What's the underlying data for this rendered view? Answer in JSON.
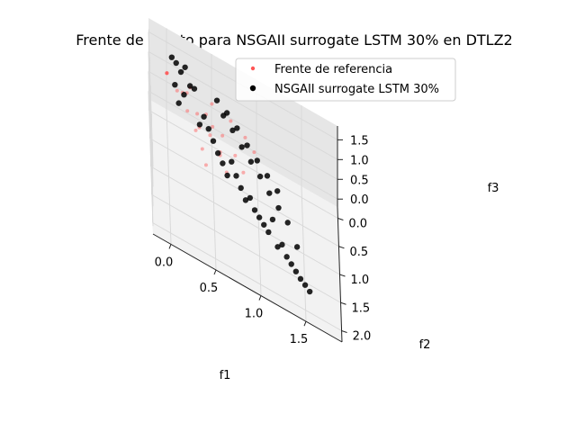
{
  "chart_data": {
    "type": "scatter",
    "projection": "3d",
    "title": "Frente de Pareto para NSGAII surrogate LSTM 30% en DTLZ2",
    "xlabel": "f1",
    "ylabel": "f2",
    "zlabel": "f3",
    "xlim": [
      -0.2,
      1.9
    ],
    "ylim": [
      -0.2,
      2.2
    ],
    "zlim": [
      -0.2,
      1.85
    ],
    "xticks": [
      "0.0",
      "0.5",
      "1.0",
      "1.5"
    ],
    "yticks": [
      "0.0",
      "0.5",
      "1.0",
      "1.5",
      "2.0"
    ],
    "zticks": [
      "0.0",
      "0.5",
      "1.0",
      "1.5"
    ],
    "grid": true,
    "legend_position": "upper-right",
    "colors": {
      "reference": "#ff5555",
      "surrogate": "#000000",
      "pane": "#f2f2f2",
      "grid": "#d9d9d9"
    },
    "series": [
      {
        "name": "Frente de referencia",
        "color": "#ff5555",
        "description": "DTLZ2 unit-sphere octant, f1^2+f2^2+f3^2=1",
        "x": [
          0.0,
          0.26,
          0.5,
          0.71,
          0.87,
          0.97,
          0.0,
          0.22,
          0.43,
          0.61,
          0.75,
          0.84,
          0.0,
          0.17,
          0.33,
          0.47,
          0.58,
          0.65,
          0.0,
          0.11,
          0.22,
          0.31,
          0.38,
          0.42,
          0.58,
          0.5,
          0.35
        ],
        "y": [
          0.0,
          0.0,
          0.0,
          0.0,
          0.0,
          0.0,
          0.0,
          0.13,
          0.25,
          0.35,
          0.43,
          0.48,
          0.0,
          0.17,
          0.33,
          0.47,
          0.58,
          0.65,
          0.0,
          0.19,
          0.38,
          0.53,
          0.65,
          0.73,
          0.58,
          0.35,
          0.5
        ],
        "z": [
          1.0,
          0.97,
          0.87,
          0.71,
          0.5,
          0.26,
          1.0,
          0.97,
          0.87,
          0.71,
          0.5,
          0.26,
          1.0,
          0.97,
          0.87,
          0.71,
          0.5,
          0.26,
          1.0,
          0.97,
          0.87,
          0.71,
          0.5,
          0.26,
          0.58,
          0.79,
          0.79
        ]
      },
      {
        "name": "NSGAII surrogate LSTM 30%",
        "color": "#000000",
        "x": [
          0.05,
          0.1,
          0.15,
          0.2,
          0.08,
          0.25,
          0.3,
          0.12,
          0.18,
          0.4,
          0.45,
          0.5,
          0.55,
          0.35,
          0.6,
          0.65,
          0.7,
          0.75,
          0.8,
          0.85,
          0.9,
          0.95,
          1.0,
          1.05,
          1.1,
          1.15,
          1.2,
          1.25,
          1.3,
          1.35,
          1.4,
          1.45,
          1.5,
          1.55,
          0.62,
          0.72,
          0.82,
          0.92,
          1.02,
          1.12,
          1.22,
          1.32,
          0.55,
          0.66,
          0.77,
          0.88,
          0.99,
          1.1,
          1.21,
          1.42
        ],
        "y": [
          0.2,
          0.15,
          0.3,
          0.1,
          0.45,
          0.35,
          0.25,
          0.6,
          0.5,
          0.55,
          0.65,
          0.75,
          0.85,
          0.7,
          0.95,
          1.05,
          0.9,
          1.0,
          1.1,
          1.2,
          1.15,
          1.25,
          1.3,
          1.35,
          1.4,
          1.2,
          1.5,
          1.45,
          1.55,
          1.6,
          1.65,
          1.7,
          1.75,
          1.8,
          0.4,
          0.5,
          0.6,
          0.7,
          0.8,
          0.9,
          1.0,
          1.1,
          0.3,
          0.35,
          0.45,
          0.55,
          0.65,
          0.75,
          0.85,
          1.3
        ],
        "z": [
          1.75,
          1.6,
          1.65,
          1.55,
          1.45,
          1.5,
          1.35,
          1.25,
          1.4,
          1.2,
          1.1,
          1.0,
          0.9,
          1.15,
          0.85,
          0.75,
          0.95,
          0.8,
          0.7,
          0.6,
          0.65,
          0.55,
          0.5,
          0.45,
          0.4,
          0.5,
          0.3,
          0.35,
          0.25,
          0.2,
          0.15,
          0.1,
          0.08,
          0.05,
          1.3,
          1.2,
          1.05,
          0.95,
          0.85,
          0.7,
          0.6,
          0.5,
          1.45,
          1.35,
          1.25,
          1.1,
          1.0,
          0.9,
          0.8,
          0.3
        ]
      }
    ]
  }
}
